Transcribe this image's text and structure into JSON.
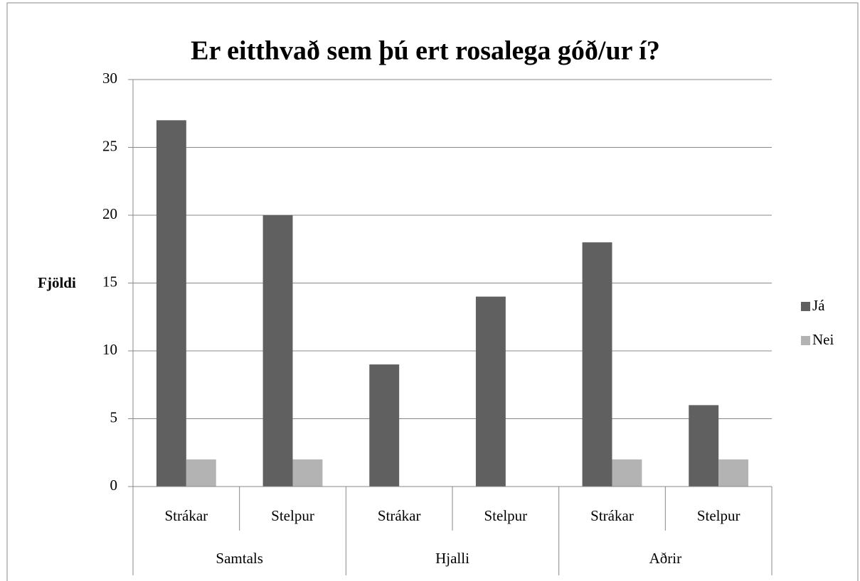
{
  "chart_data": {
    "type": "bar",
    "title": "Er eitthvað sem þú ert rosalega góð/ur í?",
    "ylabel": "Fjöldi",
    "categories": [
      "Strákar",
      "Stelpur",
      "Strákar",
      "Stelpur",
      "Strákar",
      "Stelpur"
    ],
    "groups": [
      "Samtals",
      "Hjalli",
      "Aðrir"
    ],
    "series": [
      {
        "name": "Já",
        "color": "#606060",
        "values": [
          27,
          20,
          9,
          14,
          18,
          6
        ]
      },
      {
        "name": "Nei",
        "color": "#b3b3b3",
        "values": [
          2,
          2,
          0,
          0,
          2,
          2
        ]
      }
    ],
    "ylim": [
      0,
      30
    ],
    "yticks": [
      0,
      5,
      10,
      15,
      20,
      25,
      30
    ],
    "grid": true,
    "legend": "right"
  }
}
